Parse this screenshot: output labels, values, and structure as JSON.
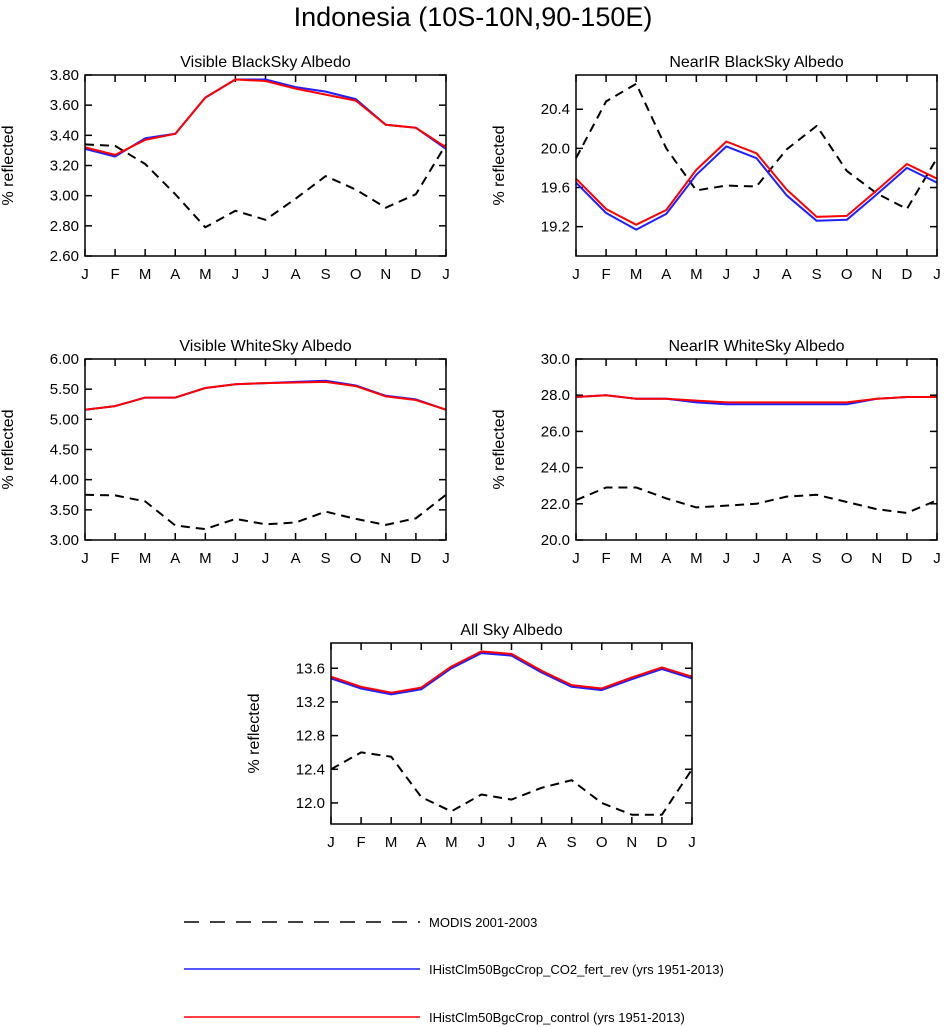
{
  "figure_title": "Indonesia (10S-10N,90-150E)",
  "colors": {
    "modis": "#000000",
    "co2_fert_rev": "#1f1fff",
    "control": "#ff0000"
  },
  "legend": [
    {
      "key": "modis",
      "label": "MODIS 2001-2003",
      "style": "dashed"
    },
    {
      "key": "co2_fert_rev",
      "label": "IHistClm50BgcCrop_CO2_fert_rev (yrs 1951-2013)",
      "style": "solid"
    },
    {
      "key": "control",
      "label": "IHistClm50BgcCrop_control (yrs 1951-2013)",
      "style": "solid"
    }
  ],
  "chart_data": [
    {
      "type": "line",
      "title": "Visible BlackSky Albedo",
      "ylabel": "% reflected",
      "categories": [
        "J",
        "F",
        "M",
        "A",
        "M",
        "J",
        "J",
        "A",
        "S",
        "O",
        "N",
        "D",
        "J"
      ],
      "ylim": [
        2.6,
        3.8
      ],
      "yticks": [
        "2.60",
        "2.80",
        "3.00",
        "3.20",
        "3.40",
        "3.60",
        "3.80"
      ],
      "series": [
        {
          "name": "MODIS 2001-2003",
          "key": "modis",
          "values": [
            3.34,
            3.33,
            3.21,
            3.01,
            2.79,
            2.9,
            2.84,
            2.98,
            3.13,
            3.04,
            2.92,
            3.01,
            3.34
          ]
        },
        {
          "name": "IHistClm50BgcCrop_CO2_fert_rev (yrs 1951-2013)",
          "key": "co2_fert_rev",
          "values": [
            3.31,
            3.26,
            3.38,
            3.41,
            3.65,
            3.77,
            3.77,
            3.72,
            3.69,
            3.64,
            3.47,
            3.45,
            3.31
          ]
        },
        {
          "name": "IHistClm50BgcCrop_control (yrs 1951-2013)",
          "key": "control",
          "values": [
            3.32,
            3.27,
            3.37,
            3.41,
            3.65,
            3.77,
            3.76,
            3.71,
            3.67,
            3.63,
            3.47,
            3.45,
            3.32
          ]
        }
      ]
    },
    {
      "type": "line",
      "title": "NearIR BlackSky Albedo",
      "ylabel": "% reflected",
      "categories": [
        "J",
        "F",
        "M",
        "A",
        "M",
        "J",
        "J",
        "A",
        "S",
        "O",
        "N",
        "D",
        "J"
      ],
      "ylim": [
        18.9,
        20.75
      ],
      "yticks": [
        "19.2",
        "19.6",
        "20.0",
        "20.4"
      ],
      "series": [
        {
          "name": "MODIS 2001-2003",
          "key": "modis",
          "values": [
            19.9,
            20.48,
            20.66,
            20.0,
            19.57,
            19.62,
            19.61,
            19.99,
            20.23,
            19.77,
            19.54,
            19.38,
            19.9
          ]
        },
        {
          "name": "IHistClm50BgcCrop_CO2_fert_rev (yrs 1951-2013)",
          "key": "co2_fert_rev",
          "values": [
            19.65,
            19.34,
            19.17,
            19.33,
            19.73,
            20.02,
            19.9,
            19.52,
            19.26,
            19.27,
            19.53,
            19.8,
            19.65
          ]
        },
        {
          "name": "IHistClm50BgcCrop_control (yrs 1951-2013)",
          "key": "control",
          "values": [
            19.69,
            19.38,
            19.22,
            19.37,
            19.78,
            20.07,
            19.95,
            19.58,
            19.3,
            19.31,
            19.57,
            19.84,
            19.69
          ]
        }
      ]
    },
    {
      "type": "line",
      "title": "Visible WhiteSky Albedo",
      "ylabel": "% reflected",
      "categories": [
        "J",
        "F",
        "M",
        "A",
        "M",
        "J",
        "J",
        "A",
        "S",
        "O",
        "N",
        "D",
        "J"
      ],
      "ylim": [
        3.0,
        6.0
      ],
      "yticks": [
        "3.00",
        "3.50",
        "4.00",
        "4.50",
        "5.00",
        "5.50",
        "6.00"
      ],
      "series": [
        {
          "name": "MODIS 2001-2003",
          "key": "modis",
          "values": [
            3.75,
            3.74,
            3.64,
            3.24,
            3.18,
            3.35,
            3.26,
            3.29,
            3.47,
            3.35,
            3.25,
            3.36,
            3.75
          ]
        },
        {
          "name": "IHistClm50BgcCrop_CO2_fert_rev (yrs 1951-2013)",
          "key": "co2_fert_rev",
          "values": [
            5.16,
            5.22,
            5.36,
            5.36,
            5.52,
            5.58,
            5.6,
            5.62,
            5.64,
            5.56,
            5.39,
            5.33,
            5.16
          ]
        },
        {
          "name": "IHistClm50BgcCrop_control (yrs 1951-2013)",
          "key": "control",
          "values": [
            5.16,
            5.22,
            5.36,
            5.36,
            5.52,
            5.58,
            5.6,
            5.61,
            5.62,
            5.55,
            5.38,
            5.32,
            5.16
          ]
        }
      ]
    },
    {
      "type": "line",
      "title": "NearIR WhiteSky Albedo",
      "ylabel": "% reflected",
      "categories": [
        "J",
        "F",
        "M",
        "A",
        "M",
        "J",
        "J",
        "A",
        "S",
        "O",
        "N",
        "D",
        "J"
      ],
      "ylim": [
        20.0,
        30.0
      ],
      "yticks": [
        "20.0",
        "22.0",
        "24.0",
        "26.0",
        "28.0",
        "30.0"
      ],
      "series": [
        {
          "name": "MODIS 2001-2003",
          "key": "modis",
          "values": [
            22.2,
            22.9,
            22.9,
            22.3,
            21.8,
            21.9,
            22.0,
            22.4,
            22.5,
            22.1,
            21.7,
            21.5,
            22.2
          ]
        },
        {
          "name": "IHistClm50BgcCrop_CO2_fert_rev (yrs 1951-2013)",
          "key": "co2_fert_rev",
          "values": [
            27.9,
            28.0,
            27.8,
            27.8,
            27.6,
            27.5,
            27.5,
            27.5,
            27.5,
            27.5,
            27.8,
            27.9,
            27.9
          ]
        },
        {
          "name": "IHistClm50BgcCrop_control (yrs 1951-2013)",
          "key": "control",
          "values": [
            27.9,
            28.0,
            27.8,
            27.8,
            27.7,
            27.6,
            27.6,
            27.6,
            27.6,
            27.6,
            27.8,
            27.9,
            27.9
          ]
        }
      ]
    },
    {
      "type": "line",
      "title": "All Sky Albedo",
      "ylabel": "% reflected",
      "categories": [
        "J",
        "F",
        "M",
        "A",
        "M",
        "J",
        "J",
        "A",
        "S",
        "O",
        "N",
        "D",
        "J"
      ],
      "ylim": [
        11.75,
        13.9
      ],
      "yticks": [
        "12.0",
        "12.4",
        "12.8",
        "13.2",
        "13.6"
      ],
      "series": [
        {
          "name": "MODIS 2001-2003",
          "key": "modis",
          "values": [
            12.4,
            12.6,
            12.55,
            12.07,
            11.9,
            12.1,
            12.04,
            12.18,
            12.27,
            12.0,
            11.86,
            11.86,
            12.4
          ]
        },
        {
          "name": "IHistClm50BgcCrop_CO2_fert_rev (yrs 1951-2013)",
          "key": "co2_fert_rev",
          "values": [
            13.48,
            13.36,
            13.29,
            13.35,
            13.6,
            13.78,
            13.75,
            13.55,
            13.38,
            13.34,
            13.47,
            13.59,
            13.48
          ]
        },
        {
          "name": "IHistClm50BgcCrop_control (yrs 1951-2013)",
          "key": "control",
          "values": [
            13.5,
            13.38,
            13.31,
            13.37,
            13.62,
            13.8,
            13.77,
            13.57,
            13.4,
            13.36,
            13.49,
            13.61,
            13.5
          ]
        }
      ]
    }
  ]
}
